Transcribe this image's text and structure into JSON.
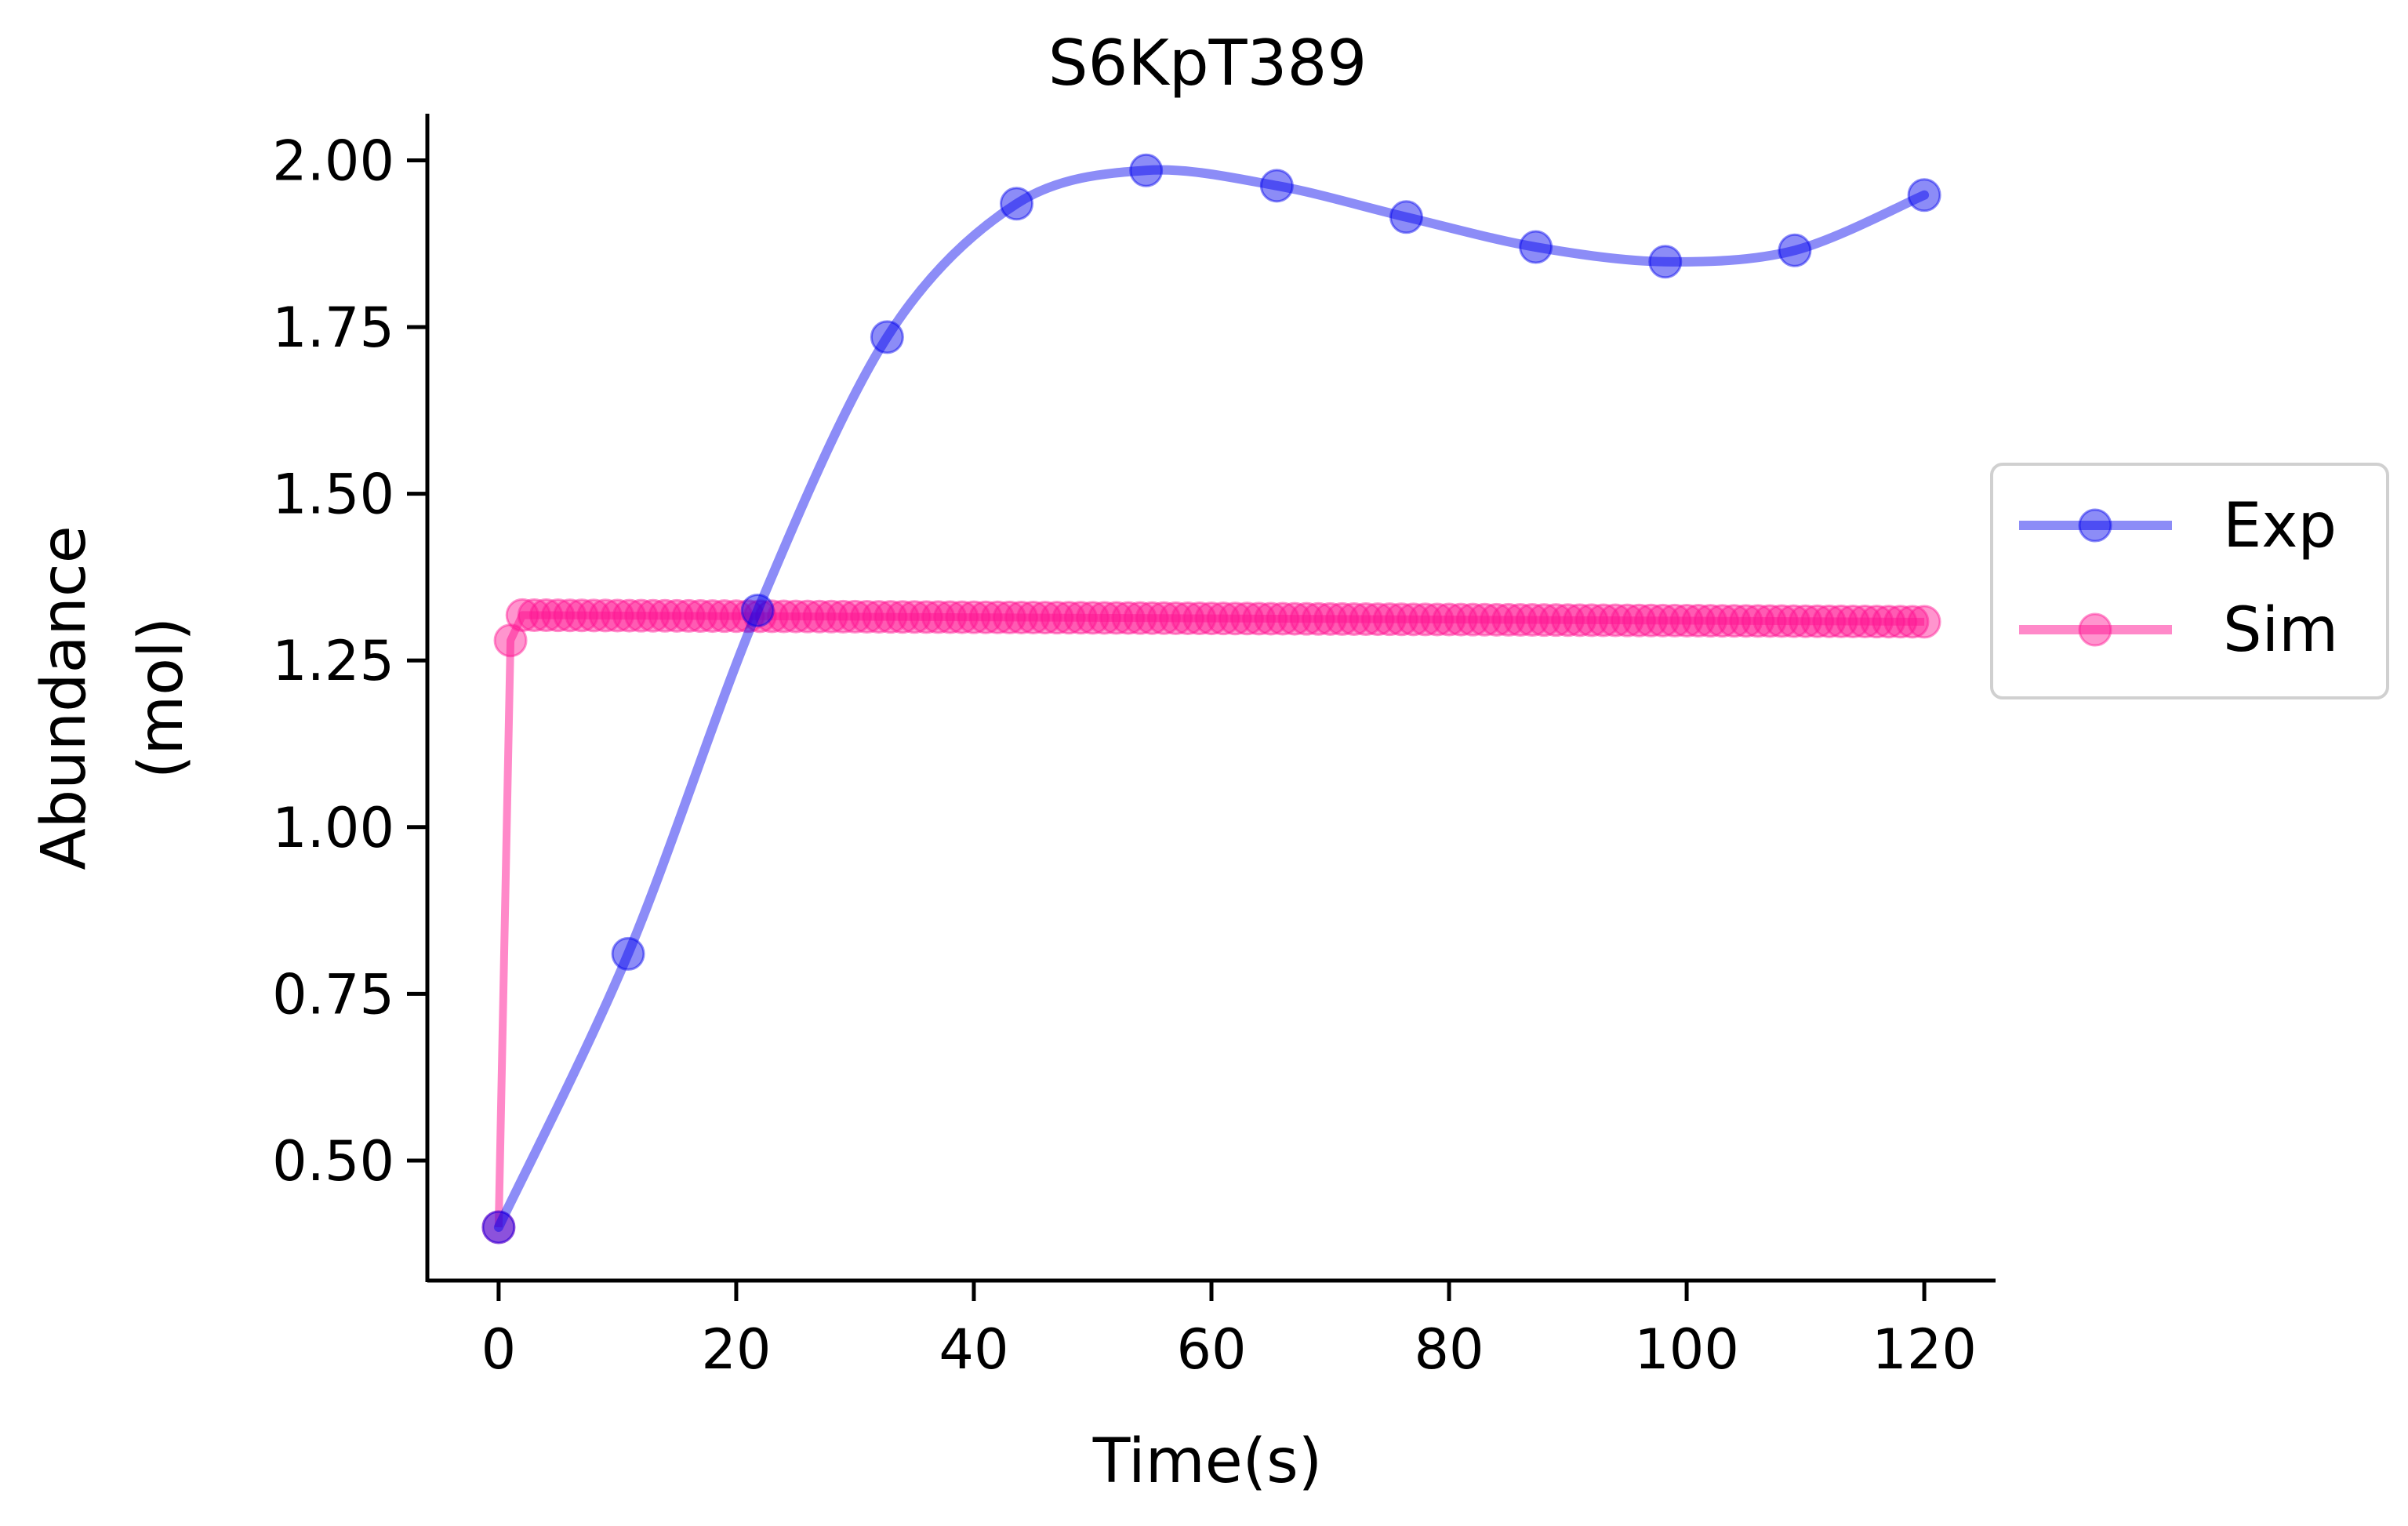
{
  "chart_data": {
    "type": "line",
    "title": "S6KpT389",
    "xlabel": "Time(s)",
    "ylabel_lines": [
      "Abundance",
      "(mol)"
    ],
    "xlim": [
      -6,
      126
    ],
    "ylim": [
      0.32,
      2.07
    ],
    "xticks": [
      0,
      20,
      40,
      60,
      80,
      100,
      120
    ],
    "xtick_labels": [
      "0",
      "20",
      "40",
      "60",
      "80",
      "100",
      "120"
    ],
    "yticks": [
      0.5,
      0.75,
      1.0,
      1.25,
      1.5,
      1.75,
      2.0
    ],
    "ytick_labels": [
      "0.50",
      "0.75",
      "1.00",
      "1.25",
      "1.50",
      "1.75",
      "2.00"
    ],
    "grid": false,
    "legend_position": "center-right outside",
    "series": [
      {
        "name": "Exp",
        "color": "#0000ee",
        "x": [
          0,
          10.9,
          21.8,
          32.7,
          43.6,
          54.5,
          65.5,
          76.4,
          87.3,
          98.2,
          109.1,
          120
        ],
        "y": [
          0.4,
          0.81,
          1.325,
          1.735,
          1.935,
          1.985,
          1.962,
          1.915,
          1.87,
          1.848,
          1.865,
          1.948
        ]
      },
      {
        "name": "Sim",
        "color": "#ff1493",
        "x_start": 0,
        "x_step": 1,
        "x_end": 120,
        "y_initial": 0.4,
        "y_second": 1.28,
        "y_plateau_start": 1.318,
        "y_plateau_end": 1.308
      }
    ]
  }
}
